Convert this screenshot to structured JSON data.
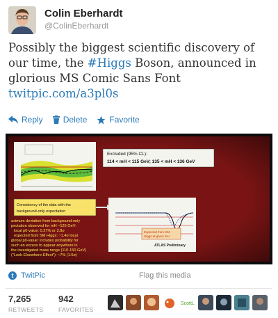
{
  "user": {
    "display_name": "Colin Eberhardt",
    "handle": "@ColinEberhardt"
  },
  "tweet": {
    "text_part1": "Possibly the biggest scientific discovery of our time, the ",
    "hashtag": "#Higgs",
    "text_part2": " Boson, announced in glorious MS Comic Sans Font",
    "link": "twitpic.com/a3pl0s"
  },
  "actions": {
    "reply": "Reply",
    "delete": "Delete",
    "favorite": "Favorite"
  },
  "media": {
    "source": "TwitPic",
    "flag": "Flag this media",
    "slide": {
      "excluded_box_title": "Excluded (95% CL):",
      "excluded_box_text": "114 < mH < 115 GeV; 135 < mH < 136 GeV",
      "consistency_text": "Consistency of the data with the background-only expectation",
      "expected_label": "Expected from SM Higgs at given mH",
      "atlas_label": "ATLAS Preliminary",
      "deviation_text": "aximum deviation from background-only pectation observed for mH ~126 GeV: local p0-value: 0.27% or 2.8σ expected from SM Higgs: ~1.4σ local global p0-value: includes probability for such an excess to appear anywhere in the investigated mass range (110-150 GeV) (\"Look-Elsewhere-Effect\"): ~7% (1.5σ)"
    }
  },
  "stats": {
    "retweets_count": "7,265",
    "retweets_label": "RETWEETS",
    "favorites_count": "942",
    "favorites_label": "FAVORITES"
  },
  "colors": {
    "link": "#2a7ab8",
    "slide_bg": "#7a1212",
    "slide_text": "#ffe34d"
  }
}
